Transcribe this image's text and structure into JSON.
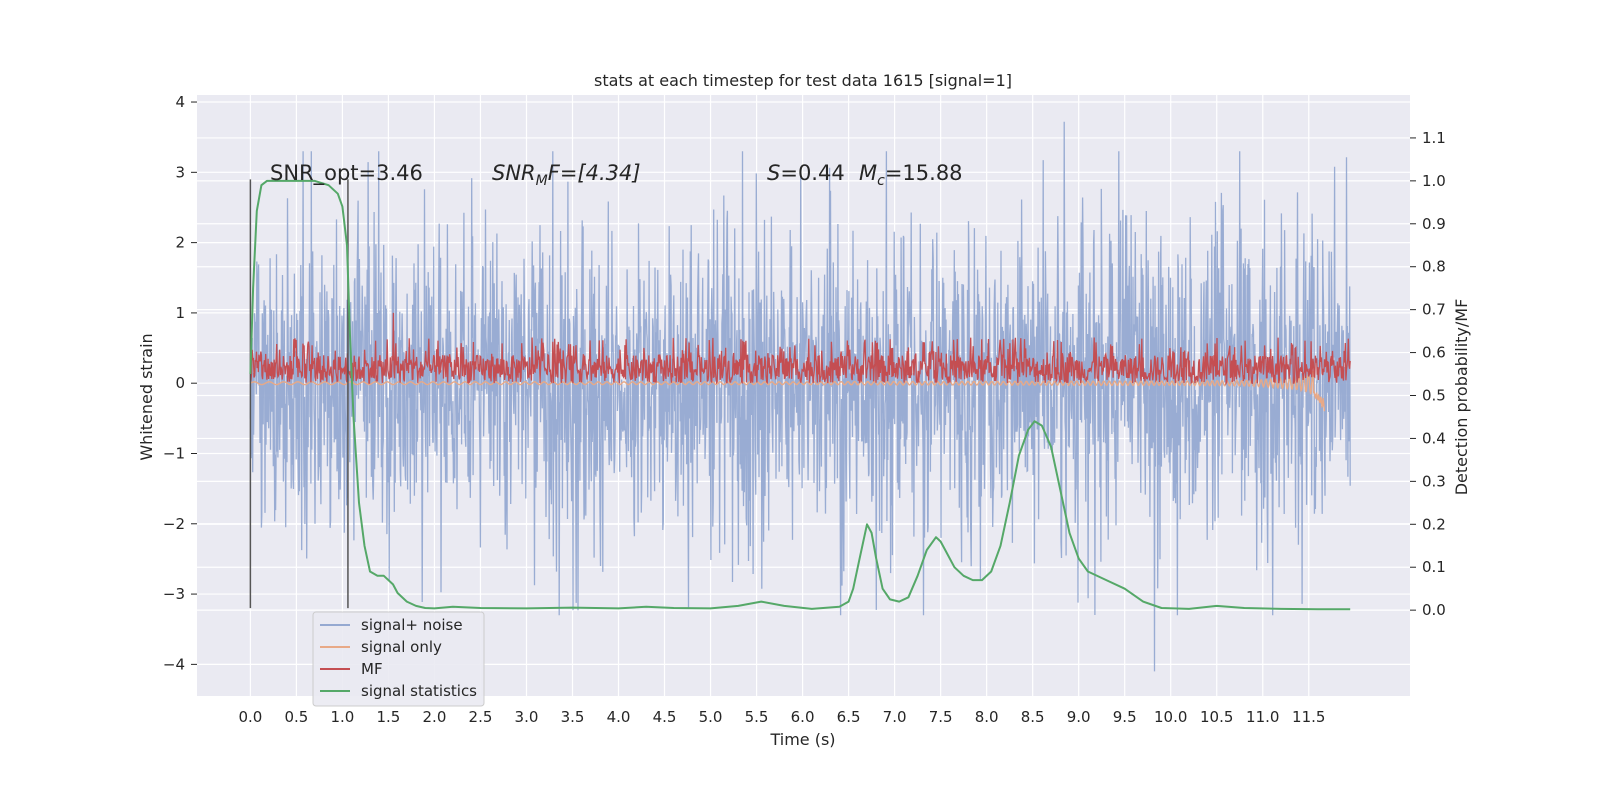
{
  "chart_data": {
    "type": "line",
    "title": "stats at each timestep for test data 1615 [signal=1]",
    "xlabel": "Time (s)",
    "ylabel_left": "Whitened strain",
    "ylabel_right": "Detection probability/MF",
    "xlim": [
      -0.58,
      12.6
    ],
    "ylim_left": [
      -4.45,
      4.1
    ],
    "ylim_right": [
      -0.2,
      1.2
    ],
    "x_ticks": [
      "0.0",
      "0.5",
      "1.0",
      "1.5",
      "2.0",
      "2.5",
      "3.0",
      "3.5",
      "4.0",
      "4.5",
      "5.0",
      "5.5",
      "6.0",
      "6.5",
      "7.0",
      "7.5",
      "8.0",
      "8.5",
      "9.0",
      "9.5",
      "10.0",
      "10.5",
      "11.0",
      "11.5"
    ],
    "y_ticks_left": [
      "−4",
      "−3",
      "−2",
      "−1",
      "0",
      "1",
      "2",
      "3",
      "4"
    ],
    "y_ticks_right": [
      "0.0",
      "0.1",
      "0.2",
      "0.3",
      "0.4",
      "0.5",
      "0.6",
      "0.7",
      "0.8",
      "0.9",
      "1.0",
      "1.1"
    ],
    "annotations": {
      "snr_opt": "SNR_opt=3.46",
      "snr_mf": "SNR",
      "snr_mf_sub": "M",
      "snr_mf_rest": "F=[4.34]",
      "s_val": "S",
      "s_rest": "=0.44",
      "mc": "M",
      "mc_sub": "c",
      "mc_rest": "=15.88"
    },
    "vlines_x": [
      0.0,
      1.06
    ],
    "legend": {
      "placement": "lower-left",
      "entries": [
        "signal+ noise",
        "signal only",
        "MF",
        "signal statistics"
      ]
    },
    "colors": {
      "signal_noise": "#95a9d1",
      "signal_only": "#e8a987",
      "mf": "#c44e52",
      "statistics": "#55a868",
      "background": "#eaeaf2",
      "grid": "#ffffff",
      "vline": "#555555"
    },
    "series": [
      {
        "name": "signal statistics",
        "axis": "right",
        "x": [
          0.0,
          0.03,
          0.07,
          0.12,
          0.18,
          0.3,
          0.5,
          0.7,
          0.85,
          0.95,
          1.0,
          1.05,
          1.08,
          1.12,
          1.18,
          1.24,
          1.3,
          1.38,
          1.45,
          1.55,
          1.6,
          1.7,
          1.8,
          1.9,
          2.0,
          2.2,
          2.5,
          3.0,
          3.5,
          4.0,
          4.3,
          4.6,
          5.0,
          5.3,
          5.55,
          5.8,
          6.1,
          6.4,
          6.5,
          6.55,
          6.62,
          6.7,
          6.75,
          6.8,
          6.87,
          6.95,
          7.05,
          7.15,
          7.25,
          7.35,
          7.45,
          7.5,
          7.55,
          7.65,
          7.75,
          7.85,
          7.95,
          8.05,
          8.15,
          8.25,
          8.35,
          8.45,
          8.52,
          8.6,
          8.7,
          8.8,
          8.9,
          9.0,
          9.1,
          9.3,
          9.5,
          9.7,
          9.9,
          10.2,
          10.5,
          10.8,
          11.2,
          11.6,
          11.95
        ],
        "y": [
          0.55,
          0.75,
          0.93,
          0.99,
          1.0,
          1.0,
          1.0,
          1.0,
          0.99,
          0.97,
          0.94,
          0.85,
          0.65,
          0.45,
          0.25,
          0.15,
          0.09,
          0.08,
          0.08,
          0.06,
          0.04,
          0.02,
          0.01,
          0.005,
          0.004,
          0.008,
          0.005,
          0.004,
          0.006,
          0.004,
          0.008,
          0.005,
          0.004,
          0.01,
          0.02,
          0.01,
          0.003,
          0.008,
          0.02,
          0.05,
          0.12,
          0.2,
          0.18,
          0.12,
          0.05,
          0.025,
          0.02,
          0.03,
          0.08,
          0.14,
          0.17,
          0.16,
          0.14,
          0.1,
          0.08,
          0.07,
          0.07,
          0.09,
          0.15,
          0.25,
          0.36,
          0.42,
          0.44,
          0.43,
          0.38,
          0.28,
          0.18,
          0.12,
          0.09,
          0.07,
          0.05,
          0.02,
          0.005,
          0.003,
          0.01,
          0.005,
          0.003,
          0.002,
          0.002
        ]
      },
      {
        "name": "signal only",
        "axis": "left",
        "x": [
          0.0,
          1.0,
          2.0,
          3.0,
          4.0,
          5.0,
          6.0,
          7.0,
          8.0,
          9.0,
          9.5,
          10.0,
          10.5,
          10.8,
          11.0,
          11.2,
          11.4,
          11.5,
          11.55,
          11.6,
          11.63,
          11.65,
          11.67
        ],
        "amplitude": [
          0.02,
          0.02,
          0.02,
          0.02,
          0.02,
          0.02,
          0.02,
          0.025,
          0.025,
          0.03,
          0.03,
          0.03,
          0.035,
          0.04,
          0.05,
          0.07,
          0.1,
          0.14,
          0.18,
          0.24,
          0.3,
          0.35,
          0.4
        ]
      },
      {
        "name": "MF",
        "axis": "left",
        "x_range": [
          0.0,
          11.95
        ],
        "band": [
          0.0,
          0.4
        ],
        "typical_peak": 0.65,
        "max_peak": 1.0
      },
      {
        "name": "signal+ noise",
        "axis": "left",
        "x_range": [
          0.0,
          11.95
        ],
        "typical_range": [
          -2.2,
          2.3
        ],
        "max": 3.72,
        "min": -4.1
      }
    ]
  }
}
